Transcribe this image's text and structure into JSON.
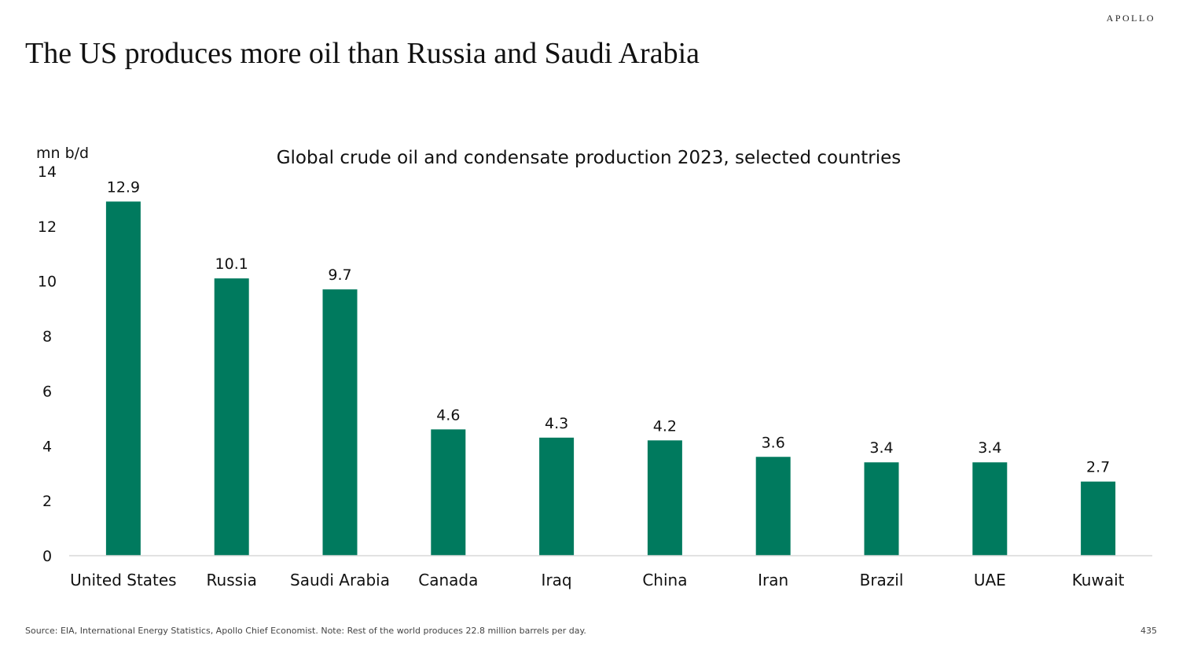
{
  "brand": "APOLLO",
  "slide_title": "The US produces more oil than Russia and Saudi Arabia",
  "chart_data": {
    "type": "bar",
    "title": "Global crude oil and condensate production 2023, selected countries",
    "ylabel": "mn b/d",
    "xlabel": "",
    "categories": [
      "United States",
      "Russia",
      "Saudi Arabia",
      "Canada",
      "Iraq",
      "China",
      "Iran",
      "Brazil",
      "UAE",
      "Kuwait"
    ],
    "values": [
      12.9,
      10.1,
      9.7,
      4.6,
      4.3,
      4.2,
      3.6,
      3.4,
      3.4,
      2.7
    ],
    "value_labels": [
      "12.9",
      "10.1",
      "9.7",
      "4.6",
      "4.3",
      "4.2",
      "3.6",
      "3.4",
      "3.4",
      "2.7"
    ],
    "ylim": [
      0,
      14
    ],
    "yticks": [
      "0",
      "2",
      "4",
      "6",
      "8",
      "10",
      "12",
      "14"
    ],
    "grid": false,
    "legend": "none",
    "bar_color": "#007A5E"
  },
  "footer": {
    "source": "Source: EIA, International Energy Statistics, Apollo Chief Economist. Note: Rest of the world produces 22.8 million barrels per day.",
    "page_number": "435"
  }
}
